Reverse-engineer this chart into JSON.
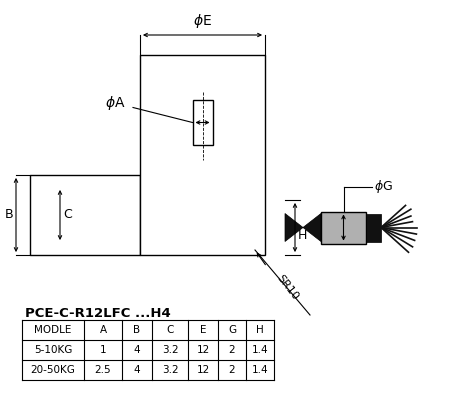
{
  "title": "PCE-C-R12LFC ...H4",
  "table_headers": [
    "MODLE",
    "A",
    "B",
    "C",
    "E",
    "G",
    "H"
  ],
  "table_rows": [
    [
      "5-10KG",
      "1",
      "4",
      "3.2",
      "12",
      "2",
      "1.4"
    ],
    [
      "20-50KG",
      "2.5",
      "4",
      "3.2",
      "12",
      "2",
      "1.4"
    ]
  ],
  "bg_color": "#ffffff",
  "line_color": "#000000",
  "gray_color": "#b0b0b0",
  "dark_color": "#111111",
  "fig_w": 4.5,
  "fig_h": 4.07,
  "dpi": 100
}
